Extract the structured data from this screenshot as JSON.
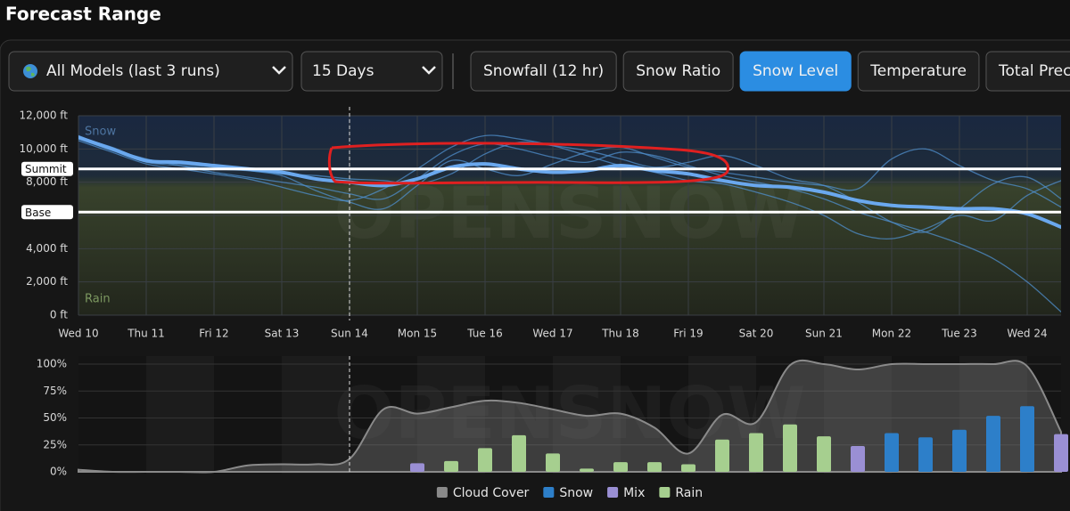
{
  "header": {
    "title": "Forecast Range"
  },
  "toolbar": {
    "model_select": "All Models (last 3 runs)",
    "range_select": "15 Days",
    "tabs": [
      {
        "label": "Snowfall (12 hr)"
      },
      {
        "label": "Snow Ratio"
      },
      {
        "label": "Snow Level"
      },
      {
        "label": "Temperature"
      },
      {
        "label": "Total Preci"
      }
    ],
    "active_tab": 2
  },
  "chart_data": [
    {
      "type": "line",
      "categories": [
        "Wed 10",
        null,
        "Thu 11",
        null,
        "Fri 12",
        null,
        "Sat 13",
        null,
        "Sun 14",
        null,
        "Mon 15",
        null,
        "Tue 16",
        null,
        "Wed 17",
        null,
        "Thu 18",
        null,
        "Fri 19",
        null,
        "Sat 20",
        null,
        "Sun 21",
        null,
        "Mon 22",
        null,
        "Tue 23",
        null,
        "Wed 24",
        null
      ],
      "current_index": 8,
      "series": [
        {
          "color": "#6aa8ee",
          "values": [
            10700,
            10000,
            9300,
            9200,
            9000,
            8800,
            8600,
            8200,
            8000,
            7800,
            8200,
            8900,
            9100,
            8800,
            8600,
            8700,
            9000,
            8700,
            8500,
            8100,
            7800,
            7700,
            7400,
            6900,
            6600,
            6500,
            6400,
            6400,
            6100,
            5300
          ]
        },
        {
          "color": "#4f8fcc",
          "values": [
            10800,
            10000,
            9400,
            9000,
            8600,
            8300,
            8000,
            7700,
            7300,
            7000,
            8200,
            9600,
            10300,
            10000,
            9500,
            9200,
            9800,
            9600,
            9000,
            8400,
            8000,
            7600,
            7000,
            6200,
            5600,
            5000,
            4300,
            3400,
            2000,
            200
          ]
        },
        {
          "color": "#4f8fcc",
          "values": [
            10600,
            9900,
            9200,
            9000,
            8800,
            8700,
            8500,
            8400,
            8200,
            8100,
            7900,
            8500,
            9700,
            10400,
            10200,
            9900,
            9400,
            8900,
            9200,
            9600,
            9000,
            8200,
            7800,
            6800,
            5600,
            5000,
            6400,
            7900,
            8300,
            7000
          ]
        },
        {
          "color": "#4f8fcc",
          "values": [
            10700,
            10100,
            9300,
            9100,
            8900,
            8700,
            8400,
            7500,
            6800,
            6400,
            7800,
            9300,
            8800,
            8400,
            9100,
            9800,
            10100,
            9500,
            8900,
            8600,
            8300,
            8000,
            7800,
            7600,
            9400,
            10000,
            9000,
            8100,
            7600,
            6500
          ]
        },
        {
          "color": "#4f8fcc",
          "values": [
            10500,
            9800,
            9100,
            8800,
            8500,
            8200,
            7700,
            7200,
            6900,
            7600,
            8800,
            10100,
            10800,
            10600,
            10200,
            9600,
            9000,
            8600,
            8100,
            7900,
            7400,
            6800,
            6000,
            4900,
            4600,
            5200,
            6000,
            5700,
            7200,
            8100
          ]
        }
      ],
      "ylim": [
        0,
        12000
      ],
      "yticks": [
        {
          "value": 0,
          "label": "0 ft"
        },
        {
          "value": 2000,
          "label": "2,000 ft"
        },
        {
          "value": 4000,
          "label": "4,000 ft"
        },
        {
          "value": 6000,
          "label": "6,000 ft"
        },
        {
          "value": 8000,
          "label": "8,000 ft"
        },
        {
          "value": 10000,
          "label": "10,000 ft"
        },
        {
          "value": 12000,
          "label": "12,000 ft"
        }
      ],
      "reference_lines": [
        {
          "label": "Summit",
          "value": 8800
        },
        {
          "label": "Base",
          "value": 6200
        }
      ],
      "zone_labels": {
        "top": "Snow",
        "bottom": "Rain"
      },
      "watermark": "OPENSNOW",
      "grid": true
    },
    {
      "type": "bar",
      "series": [
        {
          "name": "Cloud Cover",
          "type": "area",
          "color": "#8a8a8a",
          "values": [
            2,
            0,
            0,
            0,
            0,
            6,
            7,
            7,
            12,
            58,
            54,
            60,
            66,
            64,
            58,
            52,
            54,
            41,
            17,
            53,
            46,
            99,
            100,
            95,
            100,
            100,
            100,
            100,
            98,
            37
          ]
        },
        {
          "name": "Snow",
          "type": "bar",
          "color": "#2d7fc9",
          "values": [
            null,
            null,
            null,
            null,
            null,
            null,
            null,
            null,
            null,
            null,
            null,
            null,
            null,
            null,
            null,
            null,
            null,
            null,
            null,
            null,
            null,
            null,
            null,
            null,
            36,
            32,
            39,
            52,
            61,
            null
          ]
        },
        {
          "name": "Mix",
          "type": "bar",
          "color": "#9a8fd4",
          "values": [
            null,
            null,
            null,
            null,
            null,
            null,
            null,
            null,
            null,
            null,
            8,
            null,
            null,
            null,
            null,
            null,
            null,
            null,
            null,
            null,
            null,
            null,
            null,
            24,
            null,
            null,
            null,
            null,
            null,
            35
          ]
        },
        {
          "name": "Rain",
          "type": "bar",
          "color": "#a6cf8f",
          "values": [
            null,
            null,
            null,
            null,
            null,
            null,
            null,
            null,
            null,
            null,
            null,
            10,
            22,
            34,
            17,
            3,
            9,
            9,
            7,
            30,
            36,
            44,
            33,
            null,
            null,
            null,
            null,
            null,
            null,
            null
          ]
        }
      ],
      "ylim": [
        0,
        100
      ],
      "yticks": [
        {
          "value": 0,
          "label": "0%"
        },
        {
          "value": 25,
          "label": "25%"
        },
        {
          "value": 50,
          "label": "50%"
        },
        {
          "value": 75,
          "label": "75%"
        },
        {
          "value": 100,
          "label": "100%"
        }
      ],
      "watermark": "OPENSNOW",
      "legend": "bottom"
    }
  ]
}
